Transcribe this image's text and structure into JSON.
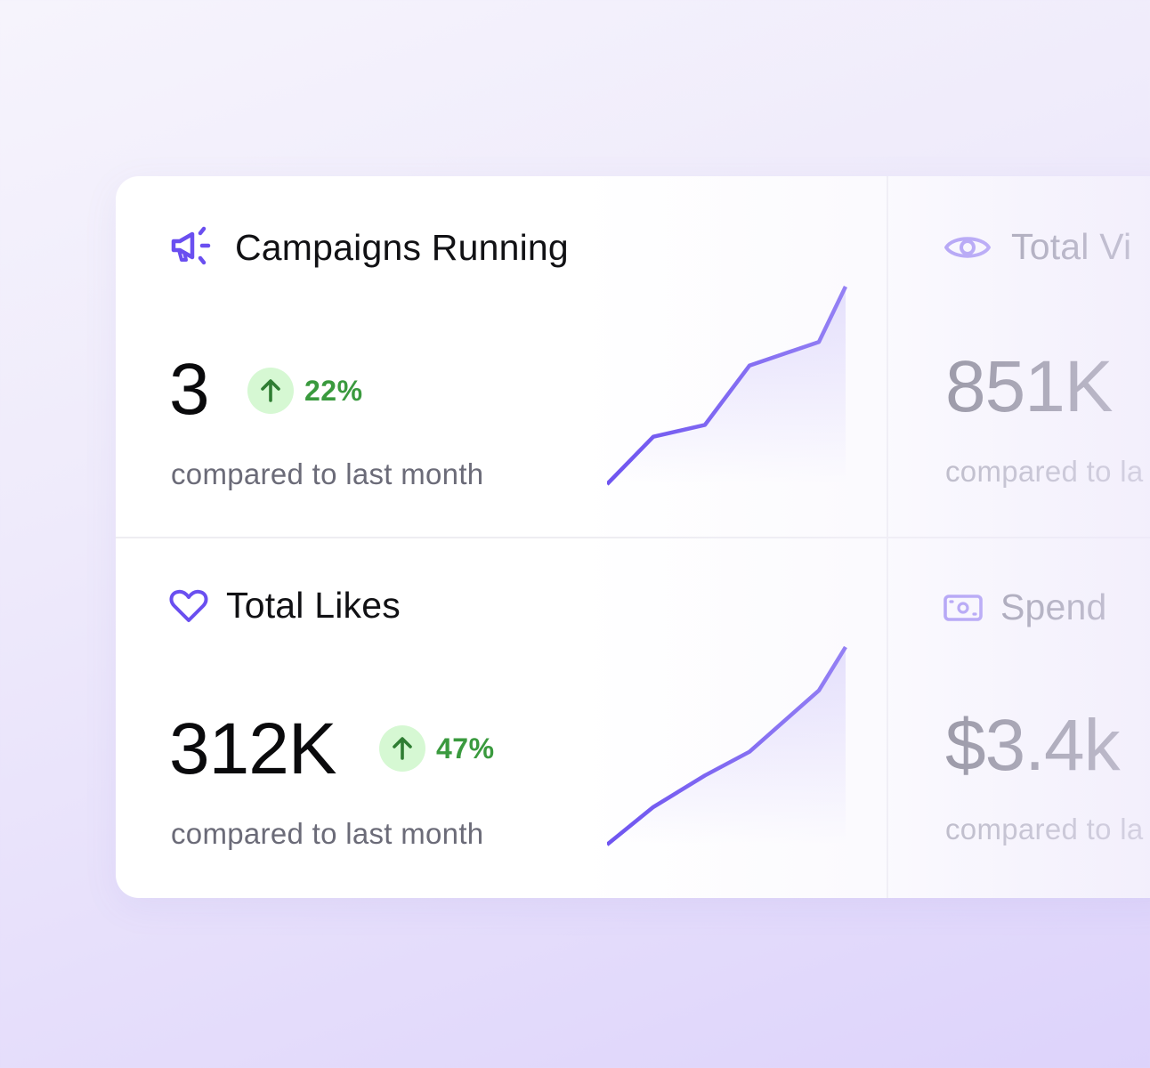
{
  "cards": [
    {
      "title": "Campaigns Running",
      "icon": "megaphone-icon",
      "value": "3",
      "change": "22%",
      "change_direction": "up",
      "subtext": "compared to last month",
      "trend_points": [
        0,
        24,
        30,
        60,
        72,
        100
      ]
    },
    {
      "title": "Total Views",
      "title_visible": "Total Vi",
      "icon": "eye-icon",
      "value": "851K",
      "subtext": "compared to last month",
      "subtext_visible": "compared to la"
    },
    {
      "title": "Total Likes",
      "icon": "heart-icon",
      "value": "312K",
      "change": "47%",
      "change_direction": "up",
      "subtext": "compared to last month",
      "trend_points": [
        0,
        19,
        35,
        47,
        78,
        100
      ]
    },
    {
      "title": "Spend",
      "icon": "cash-icon",
      "value": "$3.4K",
      "value_visible": "$3.4k",
      "subtext": "compared to last month",
      "subtext_visible": "compared to la"
    }
  ],
  "colors": {
    "accent": "#6a4ff0",
    "positive": "#3a9a3e",
    "positive_bg": "#d6f8d3"
  }
}
